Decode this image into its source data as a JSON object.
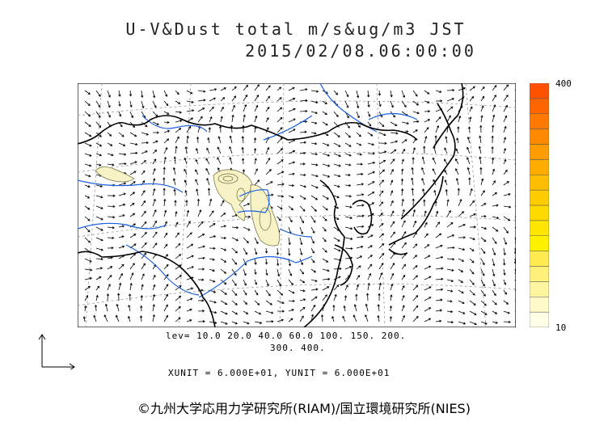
{
  "title_line1": "U-V&Dust total m/s&ug/m3 JST",
  "title_line2": "2015/02/08.06:00:00",
  "colorbar": {
    "max_label": "400",
    "min_label": "10",
    "colors": [
      "#ffffe8",
      "#fffac8",
      "#fff4a0",
      "#fff07a",
      "#ffec50",
      "#fff200",
      "#ffe600",
      "#ffda00",
      "#ffcc00",
      "#ffbd00",
      "#ffad00",
      "#ff9c00",
      "#ff8a00",
      "#ff7800",
      "#ff6600",
      "#ff5200"
    ]
  },
  "levels_line1": "lev= 10.0 20.0 40.0 60.0 100. 150. 200.",
  "levels_line2": "300. 400.",
  "units_line": "XUNIT = 6.000E+01, YUNIT = 6.000E+01",
  "copyright": "©九州大学応用力学研究所(RIAM)/国立環境研究所(NIES)",
  "map": {
    "coast_color": "#000000",
    "river_color": "#1a5fe0",
    "grid_color": "#808080",
    "dust_fill": "#f7f3c6",
    "contour_color": "#6b6b3a"
  }
}
